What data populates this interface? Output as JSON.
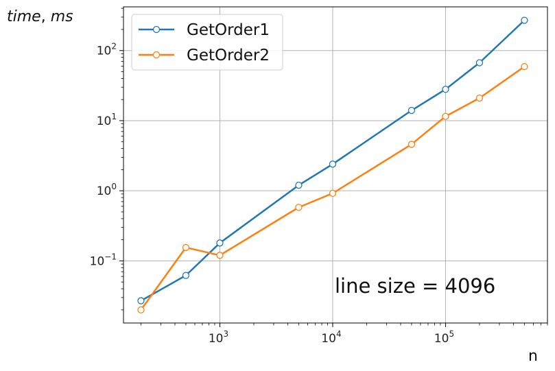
{
  "chart_data": {
    "type": "line",
    "x_scale": "log",
    "y_scale": "log",
    "xlabel": "n",
    "ylabel_main": "time",
    "ylabel_sep": ", ",
    "ylabel_unit": "ms",
    "xlim": [
      140,
      800000
    ],
    "ylim": [
      0.013,
      420
    ],
    "grid": true,
    "legend_position": "top-left",
    "x_ticks": [
      {
        "base": "10",
        "exp": "3",
        "value": 1000
      },
      {
        "base": "10",
        "exp": "4",
        "value": 10000
      },
      {
        "base": "10",
        "exp": "5",
        "value": 100000
      }
    ],
    "y_ticks": [
      {
        "base": "10",
        "exp": "−1",
        "value": 0.1
      },
      {
        "base": "10",
        "exp": "0",
        "value": 1
      },
      {
        "base": "10",
        "exp": "1",
        "value": 10
      },
      {
        "base": "10",
        "exp": "2",
        "value": 100
      }
    ],
    "series": [
      {
        "name": "GetOrder1",
        "color": "#1f77b4",
        "x": [
          200,
          500,
          1000,
          5000,
          10000,
          50000,
          100000,
          200000,
          500000
        ],
        "y": [
          0.027,
          0.062,
          0.18,
          1.2,
          2.4,
          14,
          28,
          67,
          270
        ]
      },
      {
        "name": "GetOrder2",
        "color": "#ff7f0e",
        "x": [
          200,
          500,
          1000,
          5000,
          10000,
          50000,
          100000,
          200000,
          500000
        ],
        "y": [
          0.02,
          0.155,
          0.12,
          0.58,
          0.92,
          4.6,
          11.5,
          21,
          59
        ]
      }
    ],
    "annotation": "line size = 4096"
  }
}
